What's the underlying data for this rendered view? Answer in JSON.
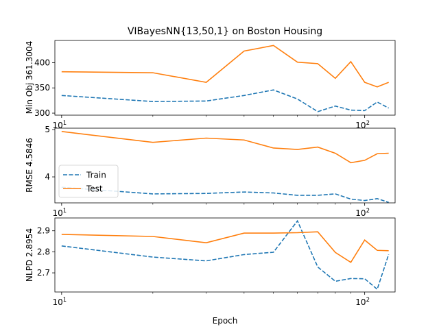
{
  "chart_data": [
    {
      "type": "line",
      "title": "VIBayesNN{13,50,1} on Boston Housing",
      "ylabel": "Min Obj 361.3004",
      "xlabel": "",
      "xscale": "log",
      "x": [
        10,
        20,
        30,
        40,
        50,
        60,
        70,
        80,
        90,
        100,
        110,
        120
      ],
      "series": [
        {
          "name": "Train",
          "values": [
            335,
            323,
            324,
            335,
            346,
            328,
            303,
            314,
            306,
            305,
            322,
            310
          ],
          "color": "#1f77b4",
          "dash": "dashed"
        },
        {
          "name": "Test",
          "values": [
            382,
            380,
            361,
            423,
            434,
            401,
            398,
            369,
            402,
            361,
            352,
            361
          ],
          "color": "#ff7f0e",
          "dash": "solid"
        }
      ],
      "ylim": [
        296,
        444
      ],
      "yticks": [
        300,
        350,
        400
      ],
      "xtick_labels": [
        {
          "base": "10",
          "exp": "1"
        },
        {
          "base": "10",
          "exp": "2"
        }
      ],
      "grid": false
    },
    {
      "type": "line",
      "ylabel": "RMSE 4.5846",
      "xlabel": "",
      "xscale": "log",
      "x": [
        10,
        20,
        30,
        40,
        50,
        60,
        70,
        80,
        90,
        100,
        110,
        120
      ],
      "series": [
        {
          "name": "Train",
          "values": [
            3.78,
            3.64,
            3.65,
            3.68,
            3.66,
            3.61,
            3.61,
            3.64,
            3.53,
            3.5,
            3.54,
            3.46
          ],
          "color": "#1f77b4",
          "dash": "dashed"
        },
        {
          "name": "Test",
          "values": [
            4.96,
            4.73,
            4.82,
            4.78,
            4.61,
            4.58,
            4.63,
            4.5,
            4.3,
            4.35,
            4.49,
            4.5
          ],
          "color": "#ff7f0e",
          "dash": "solid"
        }
      ],
      "ylim": [
        3.45,
        5.03
      ],
      "yticks": [
        4,
        5
      ],
      "legend": {
        "position": "lower left",
        "entries": [
          "Train",
          "Test"
        ]
      },
      "xtick_labels": [
        {
          "base": "10",
          "exp": "1"
        },
        {
          "base": "10",
          "exp": "2"
        }
      ],
      "grid": false
    },
    {
      "type": "line",
      "ylabel": "NLPD 2.8954",
      "xlabel": "Epoch",
      "xscale": "log",
      "x": [
        10,
        20,
        30,
        40,
        50,
        60,
        70,
        80,
        90,
        100,
        110,
        120
      ],
      "series": [
        {
          "name": "Train",
          "values": [
            2.828,
            2.775,
            2.757,
            2.787,
            2.798,
            2.947,
            2.728,
            2.66,
            2.673,
            2.672,
            2.622,
            2.788
          ],
          "color": "#1f77b4",
          "dash": "dashed"
        },
        {
          "name": "Test",
          "values": [
            2.883,
            2.873,
            2.843,
            2.889,
            2.889,
            2.891,
            2.895,
            2.797,
            2.75,
            2.856,
            2.807,
            2.805
          ],
          "color": "#ff7f0e",
          "dash": "solid"
        }
      ],
      "ylim": [
        2.609,
        2.961
      ],
      "yticks": [
        2.7,
        2.8,
        2.9
      ],
      "xtick_labels": [
        {
          "base": "10",
          "exp": "1"
        },
        {
          "base": "10",
          "exp": "2"
        }
      ],
      "grid": false
    }
  ]
}
